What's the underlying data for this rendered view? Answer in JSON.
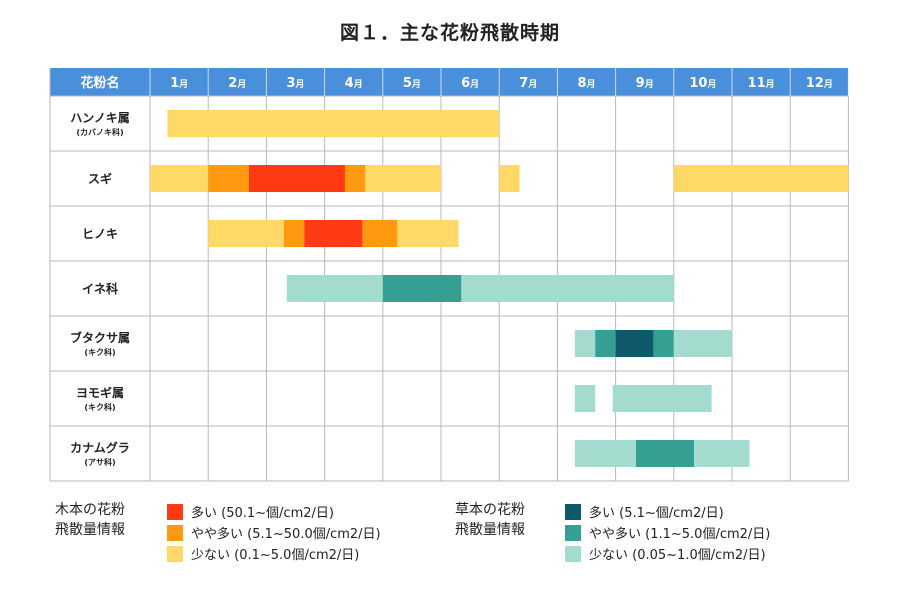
{
  "title": "図１．主な花粉飛散時期",
  "chart_data": {
    "type": "gantt",
    "header_label": "花粉名",
    "months": [
      "1",
      "2",
      "3",
      "4",
      "5",
      "6",
      "7",
      "8",
      "9",
      "10",
      "11",
      "12"
    ],
    "month_unit": "月",
    "x_range": [
      1,
      13
    ],
    "rows": [
      {
        "name": "ハンノキ属",
        "sub": "(カバノキ科)",
        "segments": [
          {
            "start": 1.3,
            "end": 7.0,
            "level": "tree_low"
          }
        ]
      },
      {
        "name": "スギ",
        "sub": "",
        "segments": [
          {
            "start": 1.0,
            "end": 2.0,
            "level": "tree_low"
          },
          {
            "start": 2.0,
            "end": 2.7,
            "level": "tree_mid"
          },
          {
            "start": 2.7,
            "end": 4.35,
            "level": "tree_high"
          },
          {
            "start": 4.35,
            "end": 4.7,
            "level": "tree_mid"
          },
          {
            "start": 4.7,
            "end": 6.0,
            "level": "tree_low"
          },
          {
            "start": 7.0,
            "end": 7.35,
            "level": "tree_low"
          },
          {
            "start": 10.0,
            "end": 13.0,
            "level": "tree_low"
          }
        ]
      },
      {
        "name": "ヒノキ",
        "sub": "",
        "segments": [
          {
            "start": 2.0,
            "end": 3.3,
            "level": "tree_low"
          },
          {
            "start": 3.3,
            "end": 3.65,
            "level": "tree_mid"
          },
          {
            "start": 3.65,
            "end": 4.65,
            "level": "tree_high"
          },
          {
            "start": 4.65,
            "end": 5.25,
            "level": "tree_mid"
          },
          {
            "start": 5.25,
            "end": 6.3,
            "level": "tree_low"
          }
        ]
      },
      {
        "name": "イネ科",
        "sub": "",
        "segments": [
          {
            "start": 3.35,
            "end": 5.0,
            "level": "herb_low"
          },
          {
            "start": 5.0,
            "end": 6.35,
            "level": "herb_mid"
          },
          {
            "start": 6.35,
            "end": 10.0,
            "level": "herb_low"
          }
        ]
      },
      {
        "name": "ブタクサ属",
        "sub": "(キク科)",
        "segments": [
          {
            "start": 8.3,
            "end": 8.65,
            "level": "herb_low"
          },
          {
            "start": 8.65,
            "end": 9.0,
            "level": "herb_mid"
          },
          {
            "start": 9.0,
            "end": 9.65,
            "level": "herb_high"
          },
          {
            "start": 9.65,
            "end": 10.0,
            "level": "herb_mid"
          },
          {
            "start": 10.0,
            "end": 11.0,
            "level": "herb_low"
          }
        ]
      },
      {
        "name": "ヨモギ属",
        "sub": "(キク科)",
        "segments": [
          {
            "start": 8.3,
            "end": 8.65,
            "level": "herb_low"
          },
          {
            "start": 8.95,
            "end": 10.65,
            "level": "herb_low"
          }
        ]
      },
      {
        "name": "カナムグラ",
        "sub": "(アサ科)",
        "segments": [
          {
            "start": 8.3,
            "end": 9.35,
            "level": "herb_low"
          },
          {
            "start": 9.35,
            "end": 10.35,
            "level": "herb_mid"
          },
          {
            "start": 10.35,
            "end": 11.3,
            "level": "herb_low"
          }
        ]
      }
    ],
    "colors": {
      "header": "#4a8fdb",
      "grid": "#b8b8b8",
      "tree_high": "#ff3b14",
      "tree_mid": "#ff990f",
      "tree_low": "#ffd966",
      "herb_high": "#0e5a6b",
      "herb_mid": "#35a091",
      "herb_low": "#a3dccf"
    }
  },
  "legend": {
    "tree": {
      "heading_line1": "木本の花粉",
      "heading_line2": "飛散量情報",
      "items": [
        {
          "label": "多い (50.1~個/cm2/日)",
          "level": "tree_high"
        },
        {
          "label": "やや多い (5.1~50.0個/cm2/日)",
          "level": "tree_mid"
        },
        {
          "label": "少ない (0.1~5.0個/cm2/日)",
          "level": "tree_low"
        }
      ]
    },
    "herb": {
      "heading_line1": "草本の花粉",
      "heading_line2": "飛散量情報",
      "items": [
        {
          "label": "多い (5.1~個/cm2/日)",
          "level": "herb_high"
        },
        {
          "label": "やや多い (1.1~5.0個/cm2/日)",
          "level": "herb_mid"
        },
        {
          "label": "少ない (0.05~1.0個/cm2/日)",
          "level": "herb_low"
        }
      ]
    }
  }
}
